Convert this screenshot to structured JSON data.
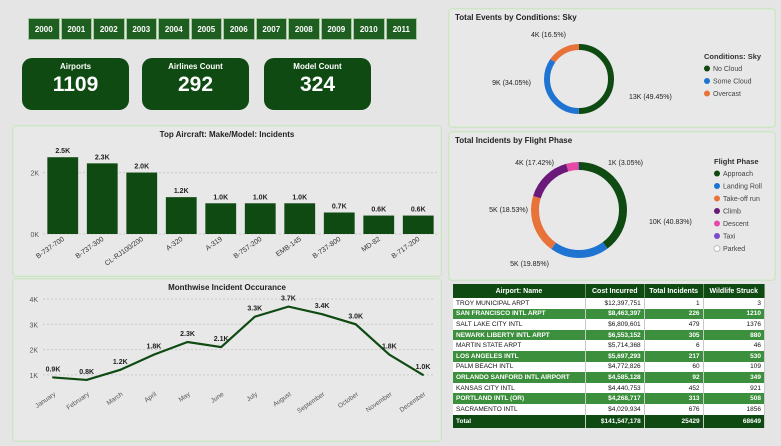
{
  "years": [
    "2000",
    "2001",
    "2002",
    "2003",
    "2004",
    "2005",
    "2006",
    "2007",
    "2008",
    "2009",
    "2010",
    "2011"
  ],
  "kpis": [
    {
      "label": "Airports",
      "value": "1109"
    },
    {
      "label": "Airlines Count",
      "value": "292"
    },
    {
      "label": "Model Count",
      "value": "324"
    }
  ],
  "chart_data": [
    {
      "type": "bar",
      "title": "Top Aircraft: Make/Model: Incidents",
      "categories": [
        "B-737-700",
        "B-737-300",
        "CL-RJ100/200",
        "A-320",
        "A-319",
        "B-757-200",
        "EMB-145",
        "B-737-800",
        "MD-82",
        "B-717-200"
      ],
      "values": [
        2500,
        2300,
        2000,
        1200,
        1000,
        1000,
        1000,
        700,
        600,
        600
      ],
      "data_labels": [
        "2.5K",
        "2.3K",
        "2.0K",
        "1.2K",
        "1.0K",
        "1.0K",
        "1.0K",
        "0.7K",
        "0.6K",
        "0.6K"
      ],
      "y_ticks": [
        "0K",
        "2K"
      ],
      "ylim": [
        0,
        2800
      ],
      "color": "#0f4a12"
    },
    {
      "type": "line",
      "title": "Monthwise Incident Occurance",
      "categories": [
        "January",
        "February",
        "March",
        "April",
        "May",
        "June",
        "July",
        "August",
        "September",
        "October",
        "November",
        "December"
      ],
      "values": [
        900,
        800,
        1200,
        1800,
        2300,
        2100,
        3300,
        3700,
        3400,
        3000,
        1800,
        1000
      ],
      "data_labels": [
        "0.9K",
        "0.8K",
        "1.2K",
        "1.8K",
        "2.3K",
        "2.1K",
        "3.3K",
        "3.7K",
        "3.4K",
        "3.0K",
        "1.8K",
        "1.0K"
      ],
      "y_ticks": [
        "1K",
        "2K",
        "3K",
        "4K"
      ],
      "ylim": [
        600,
        4000
      ],
      "color": "#0f4a12"
    },
    {
      "type": "pie",
      "title": "Total Events by Conditions: Sky",
      "legend_title": "Conditions: Sky",
      "slices": [
        {
          "name": "No Cloud",
          "value": 13000,
          "label": "13K (49.45%)",
          "color": "#0f4a12"
        },
        {
          "name": "Some Cloud",
          "value": 9000,
          "label": "9K (34.05%)",
          "color": "#1f73d1"
        },
        {
          "name": "Overcast",
          "value": 4000,
          "label": "4K (16.5%)",
          "color": "#e8733a"
        }
      ]
    },
    {
      "type": "pie",
      "title": "Total Incidents by Flight Phase",
      "legend_title": "Flight Phase",
      "slices": [
        {
          "name": "Approach",
          "value": 10000,
          "label": "10K (40.83%)",
          "color": "#0f4a12"
        },
        {
          "name": "Landing Roll",
          "value": 5000,
          "label": "5K (19.85%)",
          "color": "#1f73d1"
        },
        {
          "name": "Take-off run",
          "value": 5000,
          "label": "5K (18.53%)",
          "color": "#e8733a"
        },
        {
          "name": "Climb",
          "value": 4000,
          "label": "4K (17.42%)",
          "color": "#6b1a7a"
        },
        {
          "name": "Descent",
          "value": 1000,
          "label": "1K (3.05%)",
          "color": "#e64aa6"
        },
        {
          "name": "Taxi",
          "value": 100,
          "label": "",
          "color": "#7b4bc8"
        },
        {
          "name": "Parked",
          "value": 20,
          "label": "",
          "color": "#ffffff"
        }
      ]
    }
  ],
  "table": {
    "headers": [
      "Airport: Name",
      "Cost Incurred",
      "Total Incidents",
      "Wildlife Struck"
    ],
    "rows": [
      [
        "TROY MUNICIPAL ARPT",
        "$12,397,751",
        "1",
        "3"
      ],
      [
        "SAN FRANCISCO INTL ARPT",
        "$8,463,397",
        "226",
        "1210"
      ],
      [
        "SALT LAKE CITY INTL",
        "$6,809,601",
        "479",
        "1376"
      ],
      [
        "NEWARK LIBERTY INTL ARPT",
        "$6,553,152",
        "305",
        "880"
      ],
      [
        "MARTIN STATE ARPT",
        "$5,714,368",
        "6",
        "46"
      ],
      [
        "LOS ANGELES INTL",
        "$5,697,293",
        "217",
        "530"
      ],
      [
        "PALM BEACH INTL",
        "$4,772,826",
        "60",
        "109"
      ],
      [
        "ORLANDO SANFORD INTL AIRPORT",
        "$4,585,128",
        "92",
        "349"
      ],
      [
        "KANSAS CITY INTL",
        "$4,440,753",
        "452",
        "921"
      ],
      [
        "PORTLAND INTL (OR)",
        "$4,268,717",
        "313",
        "508"
      ],
      [
        "SACRAMENTO INTL",
        "$4,029,934",
        "676",
        "1856"
      ]
    ],
    "total": [
      "Total",
      "$141,547,178",
      "25429",
      "68649"
    ]
  }
}
